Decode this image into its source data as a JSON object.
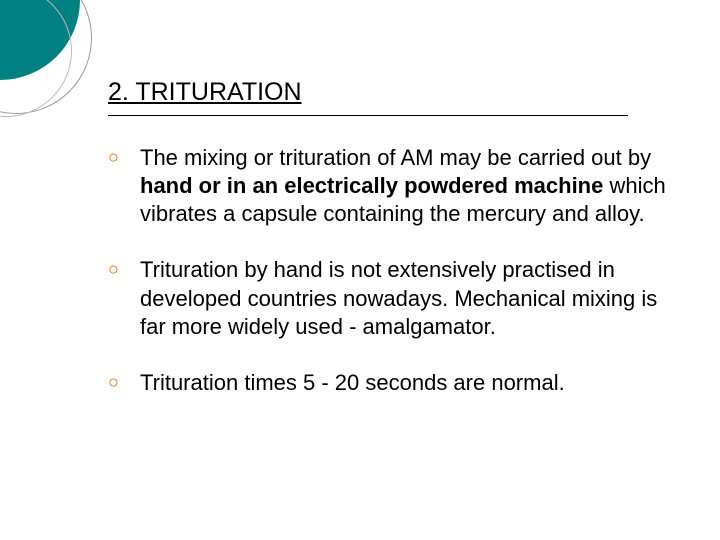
{
  "slide": {
    "title": "2. TRITURATION",
    "bullets": [
      {
        "pre": "The mixing or trituration of AM may be carried out by ",
        "bold": "hand or in an electrically powdered machine",
        "post": " which vibrates a capsule containing the mercury and alloy."
      },
      {
        "text": "Trituration by hand is not extensively practised in developed countries nowadays. Mechanical mixing is far more widely used - amalgamator."
      },
      {
        "text": "Trituration times 5 - 20 seconds are normal."
      }
    ]
  },
  "style": {
    "accent_color": "#008080",
    "bullet_color": "#cc6600",
    "text_color": "#000000",
    "background_color": "#ffffff",
    "title_fontsize": 25,
    "body_fontsize": 22,
    "font_family": "Verdana"
  }
}
